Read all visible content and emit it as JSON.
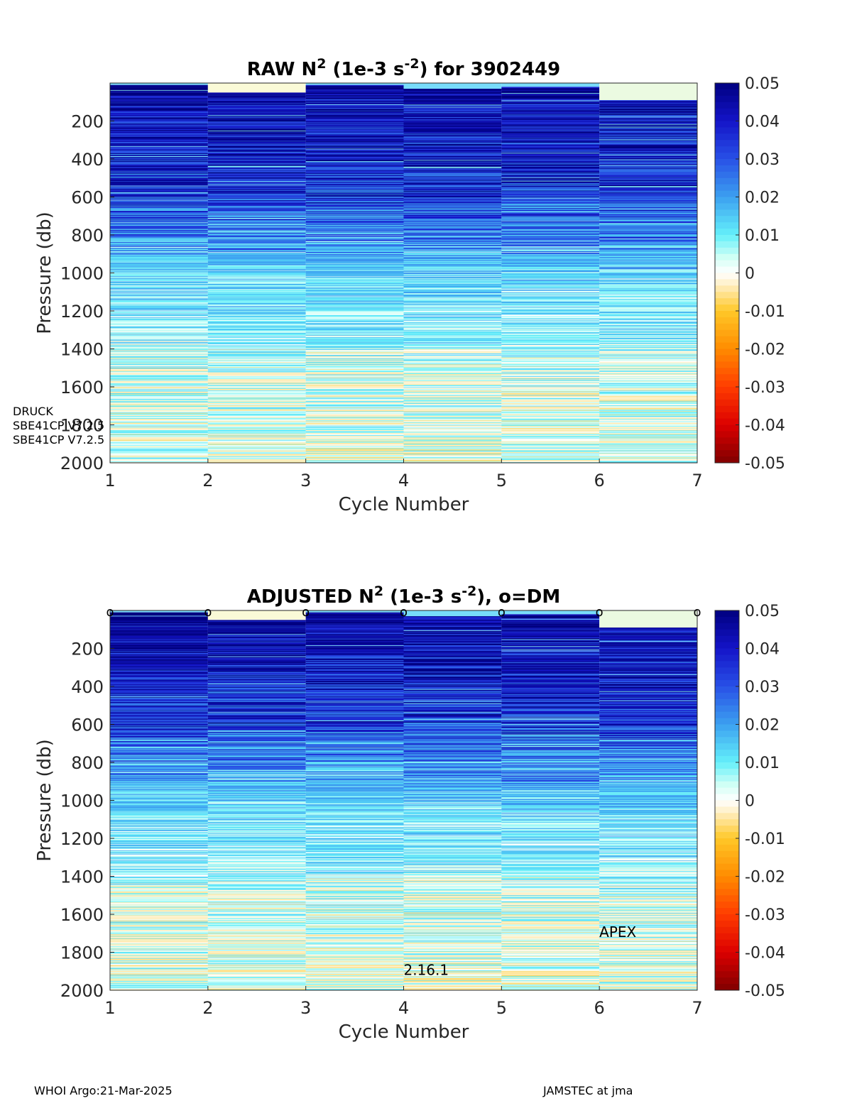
{
  "figure": {
    "footer_left": "WHOI Argo:21-Mar-2025",
    "footer_right": "JAMSTEC at jma",
    "side_labels": [
      "DRUCK",
      "SBE41CP V7.2.5",
      "SBE41CP V7.2.5"
    ]
  },
  "chart_data": [
    {
      "type": "heatmap",
      "id": "raw",
      "title_parts": {
        "pre": "RAW N",
        "sup1": "2",
        "mid": " (1e-3 s",
        "sup2": "-2",
        "post": ") for 3902449"
      },
      "xlabel": "Cycle Number",
      "ylabel": "Pressure (db)",
      "xlim": [
        1,
        7
      ],
      "ylim": [
        2000,
        0
      ],
      "xticks": [
        1,
        2,
        3,
        4,
        5,
        6,
        7
      ],
      "yticks": [
        200,
        400,
        600,
        800,
        1000,
        1200,
        1400,
        1600,
        1800,
        2000
      ],
      "cycles": [
        1,
        2,
        3,
        4,
        5,
        6
      ],
      "profile_tops_db": [
        10,
        50,
        10,
        30,
        20,
        90
      ],
      "colorbar": {
        "min": -0.05,
        "max": 0.05,
        "ticks": [
          0.05,
          0.04,
          0.03,
          0.02,
          0.01,
          0,
          -0.01,
          -0.02,
          -0.03,
          -0.04,
          -0.05
        ],
        "colormap": "blue-cyan-white-yellow-red"
      },
      "annotations": []
    },
    {
      "type": "heatmap",
      "id": "adjusted",
      "title_parts": {
        "pre": "ADJUSTED N",
        "sup1": "2",
        "mid": " (1e-3 s",
        "sup2": "-2",
        "post": "), o=DM"
      },
      "xlabel": "Cycle Number",
      "ylabel": "Pressure (db)",
      "xlim": [
        1,
        7
      ],
      "ylim": [
        2000,
        0
      ],
      "xticks": [
        1,
        2,
        3,
        4,
        5,
        6,
        7
      ],
      "yticks": [
        200,
        400,
        600,
        800,
        1000,
        1200,
        1400,
        1600,
        1800,
        2000
      ],
      "cycles": [
        1,
        2,
        3,
        4,
        5,
        6
      ],
      "profile_tops_db": [
        10,
        50,
        10,
        30,
        20,
        90
      ],
      "dm_markers": [
        1,
        2,
        3,
        4,
        5,
        6,
        7
      ],
      "dm_marker_symbol": "o",
      "colorbar": {
        "min": -0.05,
        "max": 0.05,
        "ticks": [
          0.05,
          0.04,
          0.03,
          0.02,
          0.01,
          0,
          -0.01,
          -0.02,
          -0.03,
          -0.04,
          -0.05
        ],
        "colormap": "blue-cyan-white-yellow-red"
      },
      "annotations": [
        {
          "text": "2.16.1",
          "x": 4,
          "y": 1920
        },
        {
          "text": "APEX",
          "x": 6,
          "y": 1720
        }
      ]
    }
  ]
}
